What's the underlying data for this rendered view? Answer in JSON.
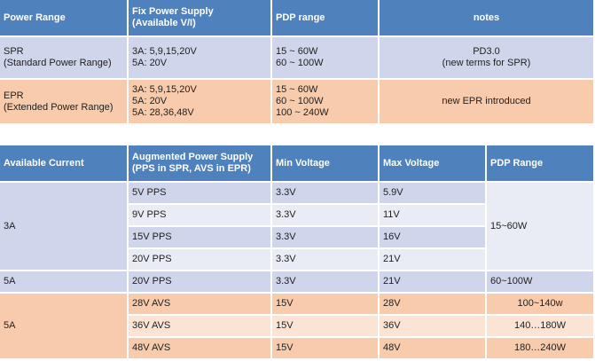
{
  "table1": {
    "headers": [
      "Power Range",
      "Fix Power Supply\n(Available V/I)",
      "PDP range",
      "notes"
    ],
    "rows": [
      {
        "range": "SPR\n(Standard Power Range)",
        "supply": "3A: 5,9,15,20V\n5A: 20V",
        "pdp": "15 ~ 60W\n60 ~ 100W",
        "notes": "PD3.0\n(new terms for SPR)"
      },
      {
        "range": "EPR\n(Extended Power Range)",
        "supply": "3A: 5,9,15,20V\n5A: 20V\n5A: 28,36,48V",
        "pdp": "15 ~ 60W\n60 ~ 100W\n100 ~ 240W",
        "notes": "new EPR introduced"
      }
    ]
  },
  "table2": {
    "headers": [
      "Available Current",
      "Augmented Power Supply\n(PPS in SPR, AVS in EPR)",
      "Min Voltage",
      "Max Voltage",
      "PDP Range"
    ],
    "groups": [
      {
        "current": "3A",
        "pdp": "15~60W",
        "rows": [
          {
            "supply": "5V PPS",
            "min": "3.3V",
            "max": "5.9V"
          },
          {
            "supply": "9V PPS",
            "min": "3.3V",
            "max": "11V"
          },
          {
            "supply": "15V PPS",
            "min": "3.3V",
            "max": "16V"
          },
          {
            "supply": "20V PPS",
            "min": "3.3V",
            "max": "21V"
          }
        ]
      },
      {
        "current": "5A",
        "pdp": "60~100W",
        "rows": [
          {
            "supply": "20V PPS",
            "min": "3.3V",
            "max": "21V"
          }
        ]
      },
      {
        "current": "5A",
        "rows": [
          {
            "supply": "28V AVS",
            "min": "15V",
            "max": "28V",
            "pdp": "100~140w"
          },
          {
            "supply": "36V AVS",
            "min": "15V",
            "max": "36V",
            "pdp": "140…180W"
          },
          {
            "supply": "48V AVS",
            "min": "15V",
            "max": "48V",
            "pdp": "180…240W"
          }
        ]
      }
    ]
  }
}
